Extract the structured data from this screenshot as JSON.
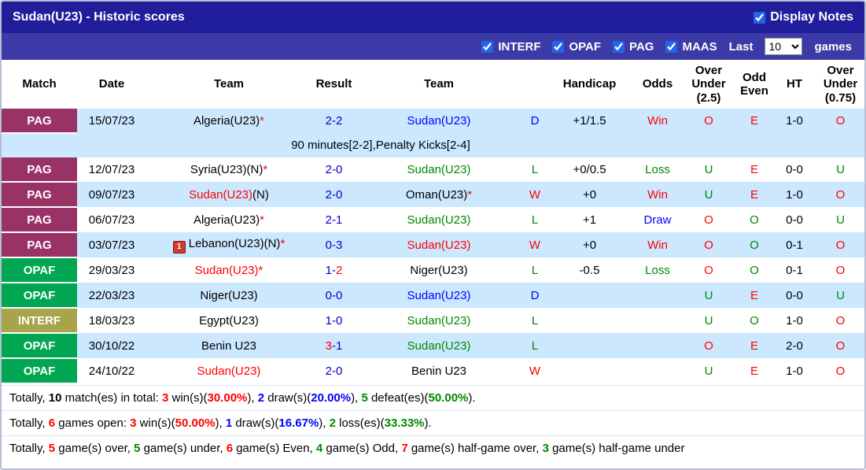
{
  "colors": {
    "red": "#ff0000",
    "green": "#008800",
    "blue": "#0000ff",
    "score_blue": "#0000cc",
    "black": "#000000",
    "row_alt_bg": "#cce8ff",
    "badge_pag": "#993366",
    "badge_opaf": "#00a651",
    "badge_interf": "#a8a44c",
    "title_bar_bg": "#211e9b",
    "filter_bar_bg": "#3c3aa6"
  },
  "title_bar": {
    "title": "Sudan(U23) - Historic scores",
    "display_notes": "Display Notes",
    "display_notes_checked": true
  },
  "filter_bar": {
    "competitions": [
      {
        "label": "INTERF",
        "checked": true
      },
      {
        "label": "OPAF",
        "checked": true
      },
      {
        "label": "PAG",
        "checked": true
      },
      {
        "label": "MAAS",
        "checked": true
      }
    ],
    "last_label": "Last",
    "games_count": "10",
    "games_label": "games"
  },
  "table": {
    "headers": [
      "Match",
      "Date",
      "Team",
      "Result",
      "Team",
      "",
      "Handicap",
      "Odds",
      "Over Under (2.5)",
      "Odd Even",
      "HT",
      "Over Under (0.75)"
    ],
    "rows": [
      {
        "competition": "PAG",
        "badge_color": "#993366",
        "date": "15/07/23",
        "home": [
          {
            "t": "Algeria(U23)",
            "c": "#000000"
          },
          {
            "t": "*",
            "c": "#ff0000"
          }
        ],
        "home_icon": false,
        "score": [
          {
            "t": "2-2",
            "c": "#0000cc"
          }
        ],
        "away": [
          {
            "t": "Sudan(U23)",
            "c": "#0000ff"
          }
        ],
        "letter": {
          "t": "D",
          "c": "#0000ff"
        },
        "handicap": "+1/1.5",
        "odds": {
          "t": "Win",
          "c": "#ff0000"
        },
        "ou25": {
          "t": "O",
          "c": "#ff0000"
        },
        "odd_even": {
          "t": "E",
          "c": "#ff0000"
        },
        "ht": "1-0",
        "ou075": {
          "t": "O",
          "c": "#ff0000"
        },
        "alt": true,
        "note": "90 minutes[2-2],Penalty Kicks[2-4]"
      },
      {
        "competition": "PAG",
        "badge_color": "#993366",
        "date": "12/07/23",
        "home": [
          {
            "t": "Syria(U23)(N)",
            "c": "#000000"
          },
          {
            "t": "*",
            "c": "#ff0000"
          }
        ],
        "home_icon": false,
        "score": [
          {
            "t": "2-0",
            "c": "#0000cc"
          }
        ],
        "away": [
          {
            "t": "Sudan(U23)",
            "c": "#008800"
          }
        ],
        "letter": {
          "t": "L",
          "c": "#008800"
        },
        "handicap": "+0/0.5",
        "odds": {
          "t": "Loss",
          "c": "#008800"
        },
        "ou25": {
          "t": "U",
          "c": "#008800"
        },
        "odd_even": {
          "t": "E",
          "c": "#ff0000"
        },
        "ht": "0-0",
        "ou075": {
          "t": "U",
          "c": "#008800"
        },
        "alt": false
      },
      {
        "competition": "PAG",
        "badge_color": "#993366",
        "date": "09/07/23",
        "home": [
          {
            "t": "Sudan(U23)",
            "c": "#ff0000"
          },
          {
            "t": "(N)",
            "c": "#000000"
          }
        ],
        "home_icon": false,
        "score": [
          {
            "t": "2-0",
            "c": "#0000cc"
          }
        ],
        "away": [
          {
            "t": "Oman(U23)",
            "c": "#000000"
          },
          {
            "t": "*",
            "c": "#ff0000"
          }
        ],
        "letter": {
          "t": "W",
          "c": "#ff0000"
        },
        "handicap": "+0",
        "odds": {
          "t": "Win",
          "c": "#ff0000"
        },
        "ou25": {
          "t": "U",
          "c": "#008800"
        },
        "odd_even": {
          "t": "E",
          "c": "#ff0000"
        },
        "ht": "1-0",
        "ou075": {
          "t": "O",
          "c": "#ff0000"
        },
        "alt": true
      },
      {
        "competition": "PAG",
        "badge_color": "#993366",
        "date": "06/07/23",
        "home": [
          {
            "t": "Algeria(U23)",
            "c": "#000000"
          },
          {
            "t": "*",
            "c": "#ff0000"
          }
        ],
        "home_icon": false,
        "score": [
          {
            "t": "2-1",
            "c": "#0000cc"
          }
        ],
        "away": [
          {
            "t": "Sudan(U23)",
            "c": "#008800"
          }
        ],
        "letter": {
          "t": "L",
          "c": "#008800"
        },
        "handicap": "+1",
        "odds": {
          "t": "Draw",
          "c": "#0000ff"
        },
        "ou25": {
          "t": "O",
          "c": "#ff0000"
        },
        "odd_even": {
          "t": "O",
          "c": "#008800"
        },
        "ht": "0-0",
        "ou075": {
          "t": "U",
          "c": "#008800"
        },
        "alt": false
      },
      {
        "competition": "PAG",
        "badge_color": "#993366",
        "date": "03/07/23",
        "home": [
          {
            "t": "Lebanon(U23)(N)",
            "c": "#000000"
          },
          {
            "t": "*",
            "c": "#ff0000"
          }
        ],
        "home_icon": true,
        "home_icon_text": "1",
        "score": [
          {
            "t": "0-3",
            "c": "#0000cc"
          }
        ],
        "away": [
          {
            "t": "Sudan(U23)",
            "c": "#ff0000"
          }
        ],
        "letter": {
          "t": "W",
          "c": "#ff0000"
        },
        "handicap": "+0",
        "odds": {
          "t": "Win",
          "c": "#ff0000"
        },
        "ou25": {
          "t": "O",
          "c": "#ff0000"
        },
        "odd_even": {
          "t": "O",
          "c": "#008800"
        },
        "ht": "0-1",
        "ou075": {
          "t": "O",
          "c": "#ff0000"
        },
        "alt": true
      },
      {
        "competition": "OPAF",
        "badge_color": "#00a651",
        "date": "29/03/23",
        "home": [
          {
            "t": "Sudan(U23)",
            "c": "#ff0000"
          },
          {
            "t": "*",
            "c": "#ff0000"
          }
        ],
        "home_icon": false,
        "score": [
          {
            "t": "1-",
            "c": "#0000cc"
          },
          {
            "t": "2",
            "c": "#ff0000"
          }
        ],
        "away": [
          {
            "t": "Niger(U23)",
            "c": "#000000"
          }
        ],
        "letter": {
          "t": "L",
          "c": "#008800"
        },
        "handicap": "-0.5",
        "odds": {
          "t": "Loss",
          "c": "#008800"
        },
        "ou25": {
          "t": "O",
          "c": "#ff0000"
        },
        "odd_even": {
          "t": "O",
          "c": "#008800"
        },
        "ht": "0-1",
        "ou075": {
          "t": "O",
          "c": "#ff0000"
        },
        "alt": false
      },
      {
        "competition": "OPAF",
        "badge_color": "#00a651",
        "date": "22/03/23",
        "home": [
          {
            "t": "Niger(U23)",
            "c": "#000000"
          }
        ],
        "home_icon": false,
        "score": [
          {
            "t": "0-0",
            "c": "#0000cc"
          }
        ],
        "away": [
          {
            "t": "Sudan(U23)",
            "c": "#0000ff"
          }
        ],
        "letter": {
          "t": "D",
          "c": "#0000ff"
        },
        "handicap": "",
        "odds": {
          "t": "",
          "c": "#000000"
        },
        "ou25": {
          "t": "U",
          "c": "#008800"
        },
        "odd_even": {
          "t": "E",
          "c": "#ff0000"
        },
        "ht": "0-0",
        "ou075": {
          "t": "U",
          "c": "#008800"
        },
        "alt": true
      },
      {
        "competition": "INTERF",
        "badge_color": "#a8a44c",
        "date": "18/03/23",
        "home": [
          {
            "t": "Egypt(U23)",
            "c": "#000000"
          }
        ],
        "home_icon": false,
        "score": [
          {
            "t": "1-0",
            "c": "#0000cc"
          }
        ],
        "away": [
          {
            "t": "Sudan(U23)",
            "c": "#008800"
          }
        ],
        "letter": {
          "t": "L",
          "c": "#008800"
        },
        "handicap": "",
        "odds": {
          "t": "",
          "c": "#000000"
        },
        "ou25": {
          "t": "U",
          "c": "#008800"
        },
        "odd_even": {
          "t": "O",
          "c": "#008800"
        },
        "ht": "1-0",
        "ou075": {
          "t": "O",
          "c": "#ff0000"
        },
        "alt": false
      },
      {
        "competition": "OPAF",
        "badge_color": "#00a651",
        "date": "30/10/22",
        "home": [
          {
            "t": "Benin U23",
            "c": "#000000"
          }
        ],
        "home_icon": false,
        "score": [
          {
            "t": "3",
            "c": "#ff0000"
          },
          {
            "t": "-1",
            "c": "#0000cc"
          }
        ],
        "away": [
          {
            "t": "Sudan(U23)",
            "c": "#008800"
          }
        ],
        "letter": {
          "t": "L",
          "c": "#008800"
        },
        "handicap": "",
        "odds": {
          "t": "",
          "c": "#000000"
        },
        "ou25": {
          "t": "O",
          "c": "#ff0000"
        },
        "odd_even": {
          "t": "E",
          "c": "#ff0000"
        },
        "ht": "2-0",
        "ou075": {
          "t": "O",
          "c": "#ff0000"
        },
        "alt": true
      },
      {
        "competition": "OPAF",
        "badge_color": "#00a651",
        "date": "24/10/22",
        "home": [
          {
            "t": "Sudan(U23)",
            "c": "#ff0000"
          }
        ],
        "home_icon": false,
        "score": [
          {
            "t": "2-0",
            "c": "#0000cc"
          }
        ],
        "away": [
          {
            "t": "Benin U23",
            "c": "#000000"
          }
        ],
        "letter": {
          "t": "W",
          "c": "#ff0000"
        },
        "handicap": "",
        "odds": {
          "t": "",
          "c": "#000000"
        },
        "ou25": {
          "t": "U",
          "c": "#008800"
        },
        "odd_even": {
          "t": "E",
          "c": "#ff0000"
        },
        "ht": "1-0",
        "ou075": {
          "t": "O",
          "c": "#ff0000"
        },
        "alt": false
      }
    ]
  },
  "footer_lines": [
    [
      {
        "t": "Totally, "
      },
      {
        "t": "10",
        "b": true
      },
      {
        "t": " match(es) in total: "
      },
      {
        "t": "3",
        "c": "#ff0000",
        "b": true
      },
      {
        "t": " win(s)("
      },
      {
        "t": "30.00%",
        "c": "#ff0000",
        "b": true
      },
      {
        "t": "), "
      },
      {
        "t": "2",
        "c": "#0000ff",
        "b": true
      },
      {
        "t": " draw(s)("
      },
      {
        "t": "20.00%",
        "c": "#0000ff",
        "b": true
      },
      {
        "t": "), "
      },
      {
        "t": "5",
        "c": "#008800",
        "b": true
      },
      {
        "t": " defeat(es)("
      },
      {
        "t": "50.00%",
        "c": "#008800",
        "b": true
      },
      {
        "t": ")."
      }
    ],
    [
      {
        "t": "Totally, "
      },
      {
        "t": "6",
        "c": "#ff0000",
        "b": true
      },
      {
        "t": " games open: "
      },
      {
        "t": "3",
        "c": "#ff0000",
        "b": true
      },
      {
        "t": " win(s)("
      },
      {
        "t": "50.00%",
        "c": "#ff0000",
        "b": true
      },
      {
        "t": "), "
      },
      {
        "t": "1",
        "c": "#0000ff",
        "b": true
      },
      {
        "t": " draw(s)("
      },
      {
        "t": "16.67%",
        "c": "#0000ff",
        "b": true
      },
      {
        "t": "), "
      },
      {
        "t": "2",
        "c": "#008800",
        "b": true
      },
      {
        "t": " loss(es)("
      },
      {
        "t": "33.33%",
        "c": "#008800",
        "b": true
      },
      {
        "t": ")."
      }
    ],
    [
      {
        "t": "Totally, "
      },
      {
        "t": "5",
        "c": "#ff0000",
        "b": true
      },
      {
        "t": " game(s) over, "
      },
      {
        "t": "5",
        "c": "#008800",
        "b": true
      },
      {
        "t": " game(s) under, "
      },
      {
        "t": "6",
        "c": "#ff0000",
        "b": true
      },
      {
        "t": " game(s) Even, "
      },
      {
        "t": "4",
        "c": "#008800",
        "b": true
      },
      {
        "t": " game(s) Odd, "
      },
      {
        "t": "7",
        "c": "#ff0000",
        "b": true
      },
      {
        "t": " game(s) half-game over, "
      },
      {
        "t": "3",
        "c": "#008800",
        "b": true
      },
      {
        "t": " game(s) half-game under"
      }
    ]
  ]
}
